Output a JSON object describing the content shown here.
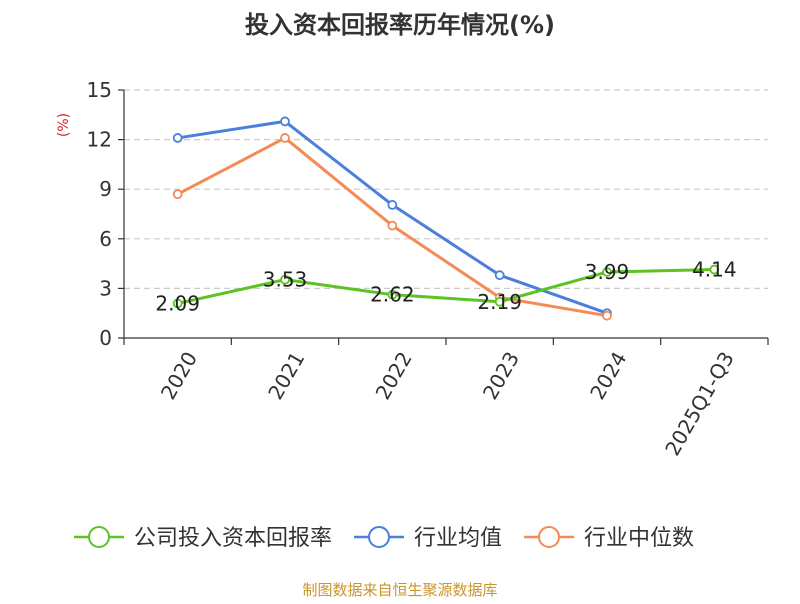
{
  "chart_data": {
    "type": "line",
    "title": "投入资本回报率历年情况(%)",
    "ylabel": "(%)",
    "xlabel": "",
    "ylim": [
      0,
      15
    ],
    "yticks": [
      0,
      3,
      6,
      9,
      12,
      15
    ],
    "grid": true,
    "legend_position": "bottom",
    "categories": [
      "2020",
      "2021",
      "2022",
      "2023",
      "2024",
      "2025Q1-Q3"
    ],
    "series": [
      {
        "name": "公司投入资本回报率",
        "color": "#5cc323",
        "values": [
          2.09,
          3.53,
          2.62,
          2.19,
          3.99,
          4.14
        ],
        "labels": [
          "2.09",
          "3.53",
          "2.62",
          "2.19",
          "3.99",
          "4.14"
        ],
        "show_labels": true
      },
      {
        "name": "行业均值",
        "color": "#4b7fdc",
        "values": [
          12.1,
          13.1,
          8.05,
          3.8,
          1.5,
          null
        ],
        "show_labels": false
      },
      {
        "name": "行业中位数",
        "color": "#f58a55",
        "values": [
          8.7,
          12.1,
          6.8,
          2.45,
          1.35,
          null
        ],
        "show_labels": false
      }
    ]
  },
  "footer": {
    "source": "制图数据来自恒生聚源数据库"
  },
  "colors": {
    "title": "#333333",
    "axis": "#333333",
    "grid": "#cccccc",
    "ylabel": "#e02020",
    "source": "#c8962c"
  }
}
